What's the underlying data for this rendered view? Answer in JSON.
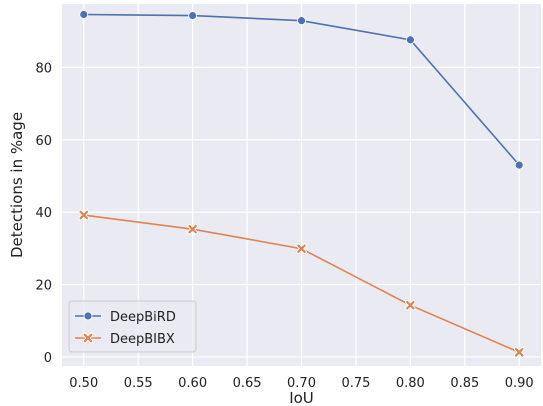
{
  "chart_data": {
    "type": "line",
    "xlabel": "IoU",
    "ylabel": "Detections in %age",
    "x": [
      0.5,
      0.6,
      0.7,
      0.8,
      0.9
    ],
    "xlim": [
      0.48,
      0.92
    ],
    "ylim": [
      -2.5,
      97.5
    ],
    "x_ticks": [
      "0.50",
      "0.55",
      "0.60",
      "0.65",
      "0.70",
      "0.75",
      "0.80",
      "0.85",
      "0.90"
    ],
    "y_ticks": [
      "0",
      "20",
      "40",
      "60",
      "80"
    ],
    "grid": true,
    "legend_position": "lower-left",
    "plot_background": "#eaeaf2",
    "series": [
      {
        "name": "DeepBiRD",
        "values": [
          94.6,
          94.3,
          92.9,
          87.6,
          53.0
        ],
        "color": "#4c72b0",
        "marker": "circle"
      },
      {
        "name": "DeepBIBX",
        "values": [
          39.2,
          35.3,
          29.9,
          14.3,
          1.3
        ],
        "color": "#dd8452",
        "marker": "x"
      }
    ]
  }
}
